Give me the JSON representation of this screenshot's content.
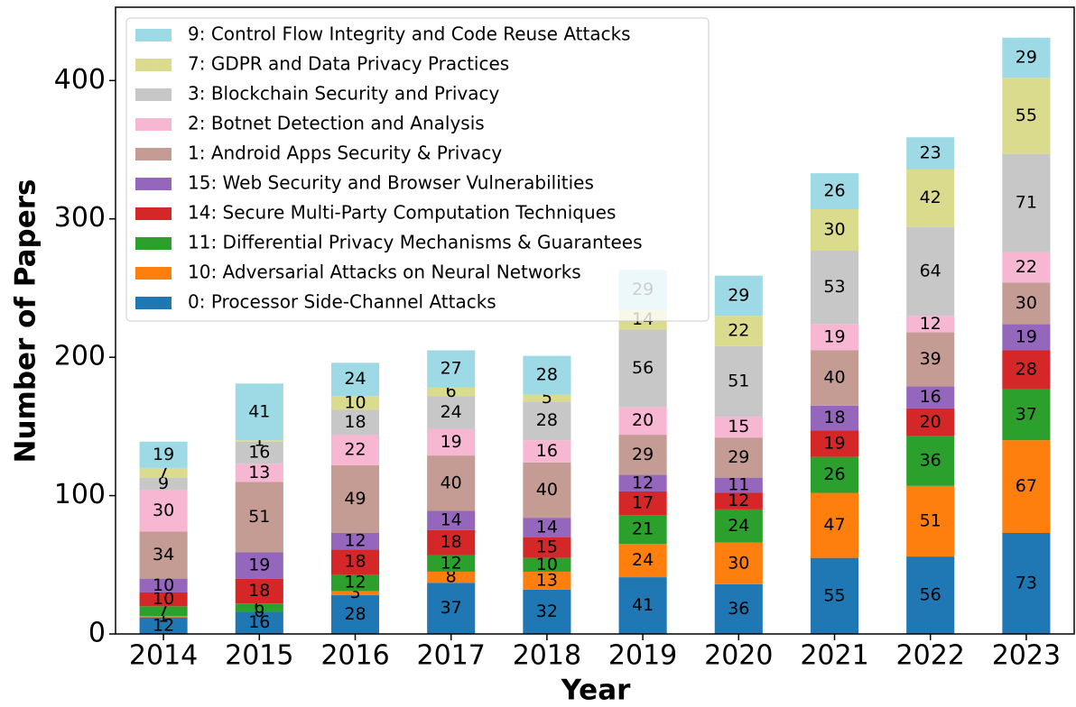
{
  "chart_data": {
    "type": "bar",
    "stacked": true,
    "x_label": "Year",
    "y_label": "Number of Papers",
    "categories": [
      "2014",
      "2015",
      "2016",
      "2017",
      "2018",
      "2019",
      "2020",
      "2021",
      "2022",
      "2023"
    ],
    "series": [
      {
        "name": "0: Processor Side-Channel Attacks",
        "color": "#1f77b4",
        "values": [
          12,
          16,
          28,
          37,
          32,
          41,
          36,
          55,
          56,
          73
        ]
      },
      {
        "name": "10: Adversarial Attacks on Neural Networks",
        "color": "#ff7f0e",
        "values": [
          1,
          0,
          3,
          8,
          13,
          24,
          30,
          47,
          51,
          67
        ]
      },
      {
        "name": "11: Differential Privacy Mechanisms & Guarantees",
        "color": "#2ca02c",
        "values": [
          7,
          6,
          12,
          12,
          10,
          21,
          24,
          26,
          36,
          37
        ]
      },
      {
        "name": "14: Secure Multi-Party Computation Techniques",
        "color": "#d62728",
        "values": [
          10,
          18,
          18,
          18,
          15,
          17,
          12,
          19,
          20,
          28
        ]
      },
      {
        "name": "15: Web Security and Browser Vulnerabilities",
        "color": "#9467bd",
        "values": [
          10,
          19,
          12,
          14,
          14,
          12,
          11,
          18,
          16,
          19
        ]
      },
      {
        "name": "1: Android Apps Security & Privacy",
        "color": "#c49c94",
        "values": [
          34,
          51,
          49,
          40,
          40,
          29,
          29,
          40,
          39,
          30
        ]
      },
      {
        "name": "2: Botnet Detection and Analysis",
        "color": "#f7b6d2",
        "values": [
          30,
          13,
          22,
          19,
          16,
          20,
          15,
          19,
          12,
          22
        ]
      },
      {
        "name": "3: Blockchain Security and Privacy",
        "color": "#c7c7c7",
        "values": [
          9,
          16,
          18,
          24,
          28,
          56,
          51,
          53,
          64,
          71
        ]
      },
      {
        "name": "7: GDPR and Data Privacy Practices",
        "color": "#dbdb8d",
        "values": [
          7,
          1,
          10,
          6,
          5,
          14,
          22,
          30,
          42,
          55
        ]
      },
      {
        "name": "9: Control Flow Integrity and Code Reuse Attacks",
        "color": "#9edae5",
        "values": [
          19,
          41,
          24,
          27,
          28,
          29,
          29,
          26,
          23,
          29
        ]
      }
    ],
    "ylim": [
      0,
      453
    ],
    "yticks": [
      0,
      100,
      200,
      300,
      400
    ],
    "legend": "upper left",
    "grid": false
  }
}
